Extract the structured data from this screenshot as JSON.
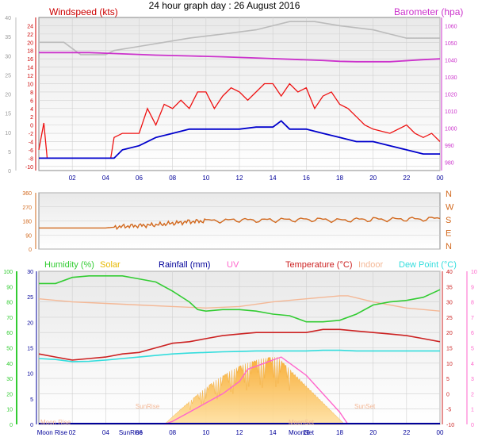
{
  "title": "24 hour graph day : 26 August 2016",
  "colors": {
    "bg": "#ffffff",
    "plot_top": "#e9e9e9",
    "plot_bottom": "#ffffff",
    "grid": "#d0d0d0",
    "wind_gust": "#ee1111",
    "wind_avg": "#0000cc",
    "barometer": "#cc33cc",
    "pressure_grey": "#bbbbbb",
    "direction": "#d2691e",
    "humidity": "#33cc33",
    "solar": "#ffc04c",
    "rainfall": "#000099",
    "uv": "#ff66cc",
    "temperature": "#cc2222",
    "indoor": "#f4b896",
    "dewpoint": "#33dddd"
  },
  "x_ticks": [
    "02",
    "04",
    "06",
    "08",
    "10",
    "12",
    "14",
    "16",
    "18",
    "20",
    "22",
    "00"
  ],
  "events": {
    "moon_rise": "Moon Rise",
    "sun_rise": "SunRise",
    "moon_set": "MoonSet",
    "sun_set": "SunSet"
  },
  "chart_data": [
    {
      "type": "line",
      "panel": "wind-barometer",
      "left_axis_title": "Windspeed (kts)",
      "right_axis_title": "Barometer (hpa)",
      "outer_ticks": [
        "0",
        "5",
        "10",
        "15",
        "20",
        "25",
        "30",
        "35",
        "40"
      ],
      "y_ticks": [
        "-10",
        "-8",
        "-6",
        "-4",
        "-2",
        "0",
        "2",
        "4",
        "6",
        "8",
        "10",
        "12",
        "14",
        "16",
        "18",
        "20",
        "22",
        "24"
      ],
      "y_range": [
        -11,
        26
      ],
      "right_ticks": [
        "980",
        "990",
        "1000",
        "1010",
        "1020",
        "1030",
        "1040",
        "1050",
        "1060"
      ],
      "right_range": [
        975,
        1065
      ],
      "x_hours": [
        0,
        24
      ],
      "series": [
        {
          "key": "pressure_grey",
          "points": [
            [
              0,
              20
            ],
            [
              1.5,
              20
            ],
            [
              2.5,
              17
            ],
            [
              4,
              17
            ],
            [
              4.5,
              18
            ],
            [
              6,
              19
            ],
            [
              7.5,
              20
            ],
            [
              9,
              21
            ],
            [
              11,
              22
            ],
            [
              13,
              23
            ],
            [
              14,
              24
            ],
            [
              15,
              25
            ],
            [
              16.5,
              25
            ],
            [
              18,
              24
            ],
            [
              20,
              23
            ],
            [
              21,
              22
            ],
            [
              22,
              21
            ],
            [
              24,
              21
            ]
          ]
        },
        {
          "key": "barometer",
          "points": [
            [
              0,
              17.5
            ],
            [
              3,
              17.5
            ],
            [
              5,
              17.2
            ],
            [
              7,
              16.9
            ],
            [
              9,
              16.7
            ],
            [
              11,
              16.5
            ],
            [
              13,
              16.2
            ],
            [
              15,
              15.9
            ],
            [
              17,
              15.6
            ],
            [
              18,
              15.4
            ],
            [
              19,
              15.3
            ],
            [
              21,
              15.3
            ],
            [
              23,
              15.8
            ],
            [
              24,
              16
            ]
          ]
        },
        {
          "key": "wind_gust",
          "points": [
            [
              0,
              -6
            ],
            [
              0.3,
              0.5
            ],
            [
              0.5,
              -8
            ],
            [
              1.5,
              -8
            ],
            [
              2.5,
              -8
            ],
            [
              3.5,
              -8
            ],
            [
              4.3,
              -8
            ],
            [
              4.5,
              -3
            ],
            [
              5,
              -2
            ],
            [
              6,
              -2
            ],
            [
              6.5,
              4
            ],
            [
              7,
              0
            ],
            [
              7.5,
              5
            ],
            [
              8,
              4
            ],
            [
              8.5,
              6
            ],
            [
              9,
              4
            ],
            [
              9.5,
              8
            ],
            [
              10,
              8
            ],
            [
              10.5,
              4
            ],
            [
              11,
              7
            ],
            [
              11.5,
              9
            ],
            [
              12,
              8
            ],
            [
              12.5,
              6
            ],
            [
              13,
              8
            ],
            [
              13.5,
              10
            ],
            [
              14,
              10
            ],
            [
              14.5,
              7
            ],
            [
              15,
              10
            ],
            [
              15.5,
              8
            ],
            [
              16,
              9
            ],
            [
              16.5,
              4
            ],
            [
              17,
              7
            ],
            [
              17.5,
              8
            ],
            [
              18,
              5
            ],
            [
              18.5,
              4
            ],
            [
              19,
              2
            ],
            [
              19.5,
              0
            ],
            [
              20,
              -1
            ],
            [
              21,
              -2
            ],
            [
              22,
              0
            ],
            [
              22.5,
              -2
            ],
            [
              23,
              -3
            ],
            [
              23.5,
              -2
            ],
            [
              24,
              -4
            ]
          ]
        },
        {
          "key": "wind_avg",
          "points": [
            [
              0,
              -8
            ],
            [
              4.5,
              -8
            ],
            [
              5,
              -6
            ],
            [
              6,
              -5
            ],
            [
              7,
              -3
            ],
            [
              8,
              -2
            ],
            [
              9,
              -1
            ],
            [
              10,
              -1
            ],
            [
              11,
              -1
            ],
            [
              12,
              -1
            ],
            [
              13,
              -0.5
            ],
            [
              14,
              -0.5
            ],
            [
              14.5,
              1
            ],
            [
              15,
              -1
            ],
            [
              16,
              -1
            ],
            [
              17,
              -2
            ],
            [
              18,
              -3
            ],
            [
              19,
              -4
            ],
            [
              20,
              -4
            ],
            [
              21,
              -5
            ],
            [
              22,
              -6
            ],
            [
              23,
              -7
            ],
            [
              24,
              -7
            ]
          ]
        }
      ]
    },
    {
      "type": "line",
      "panel": "wind-direction",
      "y_ticks": [
        "0",
        "90",
        "180",
        "270",
        "360"
      ],
      "y_range": [
        0,
        360
      ],
      "compass": [
        "N",
        "W",
        "S",
        "E",
        "N"
      ],
      "x_hours": [
        0,
        24
      ],
      "series": [
        {
          "key": "direction",
          "points": [
            [
              0,
              135
            ],
            [
              4,
              135
            ],
            [
              5,
              145
            ],
            [
              6,
              150
            ],
            [
              7,
              155
            ],
            [
              8,
              165
            ],
            [
              9,
              175
            ],
            [
              10,
              180
            ],
            [
              12,
              185
            ],
            [
              14,
              185
            ],
            [
              16,
              190
            ],
            [
              18,
              185
            ],
            [
              20,
              190
            ],
            [
              22,
              190
            ],
            [
              24,
              195
            ]
          ]
        }
      ]
    },
    {
      "type": "line",
      "panel": "temperature-humidity",
      "legend": [
        "Humidity (%)",
        "Solar",
        "Rainfall (mm)",
        "UV",
        "Temperature (°C)",
        "Indoor",
        "Dew Point (°C)"
      ],
      "humidity_ticks": [
        "0",
        "10",
        "20",
        "30",
        "40",
        "50",
        "60",
        "70",
        "80",
        "90",
        "100"
      ],
      "rainfall_ticks": [
        "0",
        "5",
        "10",
        "15",
        "20",
        "25",
        "30"
      ],
      "temperature_ticks": [
        "-10",
        "-5",
        "0",
        "5",
        "10",
        "15",
        "20",
        "25",
        "30",
        "35",
        "40"
      ],
      "uv_ticks": [
        "0",
        "1",
        "2",
        "3",
        "4",
        "5",
        "6",
        "7",
        "8",
        "9",
        "10"
      ],
      "temperature_range": [
        -10,
        40
      ],
      "x_hours": [
        0,
        24
      ],
      "series": [
        {
          "key": "indoor",
          "points": [
            [
              0,
              31
            ],
            [
              2,
              30
            ],
            [
              4,
              29.5
            ],
            [
              6,
              29
            ],
            [
              8,
              28.5
            ],
            [
              10,
              28
            ],
            [
              12,
              28.5
            ],
            [
              14,
              30
            ],
            [
              16,
              31
            ],
            [
              18,
              32
            ],
            [
              18.5,
              32
            ],
            [
              20,
              30
            ],
            [
              22,
              28
            ],
            [
              24,
              27
            ]
          ]
        },
        {
          "key": "humidity",
          "points": [
            [
              0,
              92
            ],
            [
              1,
              92
            ],
            [
              2,
              96
            ],
            [
              3,
              97
            ],
            [
              5,
              97
            ],
            [
              6,
              95
            ],
            [
              7,
              93
            ],
            [
              8,
              87
            ],
            [
              9,
              80
            ],
            [
              9.5,
              75
            ],
            [
              10,
              74
            ],
            [
              11,
              75
            ],
            [
              12,
              75
            ],
            [
              13,
              74
            ],
            [
              14,
              72
            ],
            [
              15,
              71
            ],
            [
              16,
              67
            ],
            [
              17,
              67
            ],
            [
              18,
              68
            ],
            [
              19,
              72
            ],
            [
              20,
              78
            ],
            [
              21,
              80
            ],
            [
              22,
              81
            ],
            [
              23,
              83
            ],
            [
              24,
              88
            ]
          ]
        },
        {
          "key": "temperature",
          "points": [
            [
              0,
              13
            ],
            [
              1,
              12
            ],
            [
              2,
              11
            ],
            [
              3,
              11.5
            ],
            [
              4,
              12
            ],
            [
              5,
              13
            ],
            [
              6,
              13.5
            ],
            [
              7,
              15
            ],
            [
              8,
              16.5
            ],
            [
              9,
              17
            ],
            [
              10,
              18
            ],
            [
              11,
              19
            ],
            [
              12,
              19.5
            ],
            [
              13,
              20
            ],
            [
              14,
              20
            ],
            [
              15,
              20
            ],
            [
              16,
              20
            ],
            [
              17,
              21
            ],
            [
              18,
              21
            ],
            [
              19,
              20.5
            ],
            [
              20,
              20
            ],
            [
              21,
              19.5
            ],
            [
              22,
              19
            ],
            [
              23,
              18
            ],
            [
              24,
              17
            ]
          ]
        },
        {
          "key": "dewpoint",
          "points": [
            [
              0,
              11.5
            ],
            [
              1,
              11.2
            ],
            [
              2,
              10.5
            ],
            [
              3,
              10.6
            ],
            [
              4,
              11
            ],
            [
              5,
              11.5
            ],
            [
              6,
              12
            ],
            [
              7,
              12.5
            ],
            [
              8,
              13
            ],
            [
              9,
              13.3
            ],
            [
              10,
              13.5
            ],
            [
              11,
              13.7
            ],
            [
              12,
              13.8
            ],
            [
              13,
              14
            ],
            [
              14,
              14
            ],
            [
              15,
              14
            ],
            [
              16,
              14
            ],
            [
              17,
              14.2
            ],
            [
              18,
              14.2
            ],
            [
              19,
              14
            ],
            [
              20,
              14
            ],
            [
              21,
              14
            ],
            [
              22,
              14
            ],
            [
              23,
              14
            ],
            [
              24,
              14
            ]
          ]
        }
      ],
      "solar": {
        "start": 7.5,
        "peak": 14.3,
        "end": 18.3,
        "peak_value_temp": 12
      },
      "uv": {
        "points": [
          [
            7.5,
            -10
          ],
          [
            8,
            -9
          ],
          [
            9,
            -6
          ],
          [
            10,
            -3
          ],
          [
            11,
            0
          ],
          [
            12,
            4
          ],
          [
            12.5,
            8
          ],
          [
            13,
            9
          ],
          [
            13.5,
            10
          ],
          [
            14,
            11
          ],
          [
            14.5,
            12
          ],
          [
            15,
            10
          ],
          [
            16,
            6
          ],
          [
            17,
            0
          ],
          [
            18,
            -6
          ],
          [
            18.5,
            -10
          ]
        ]
      }
    }
  ]
}
